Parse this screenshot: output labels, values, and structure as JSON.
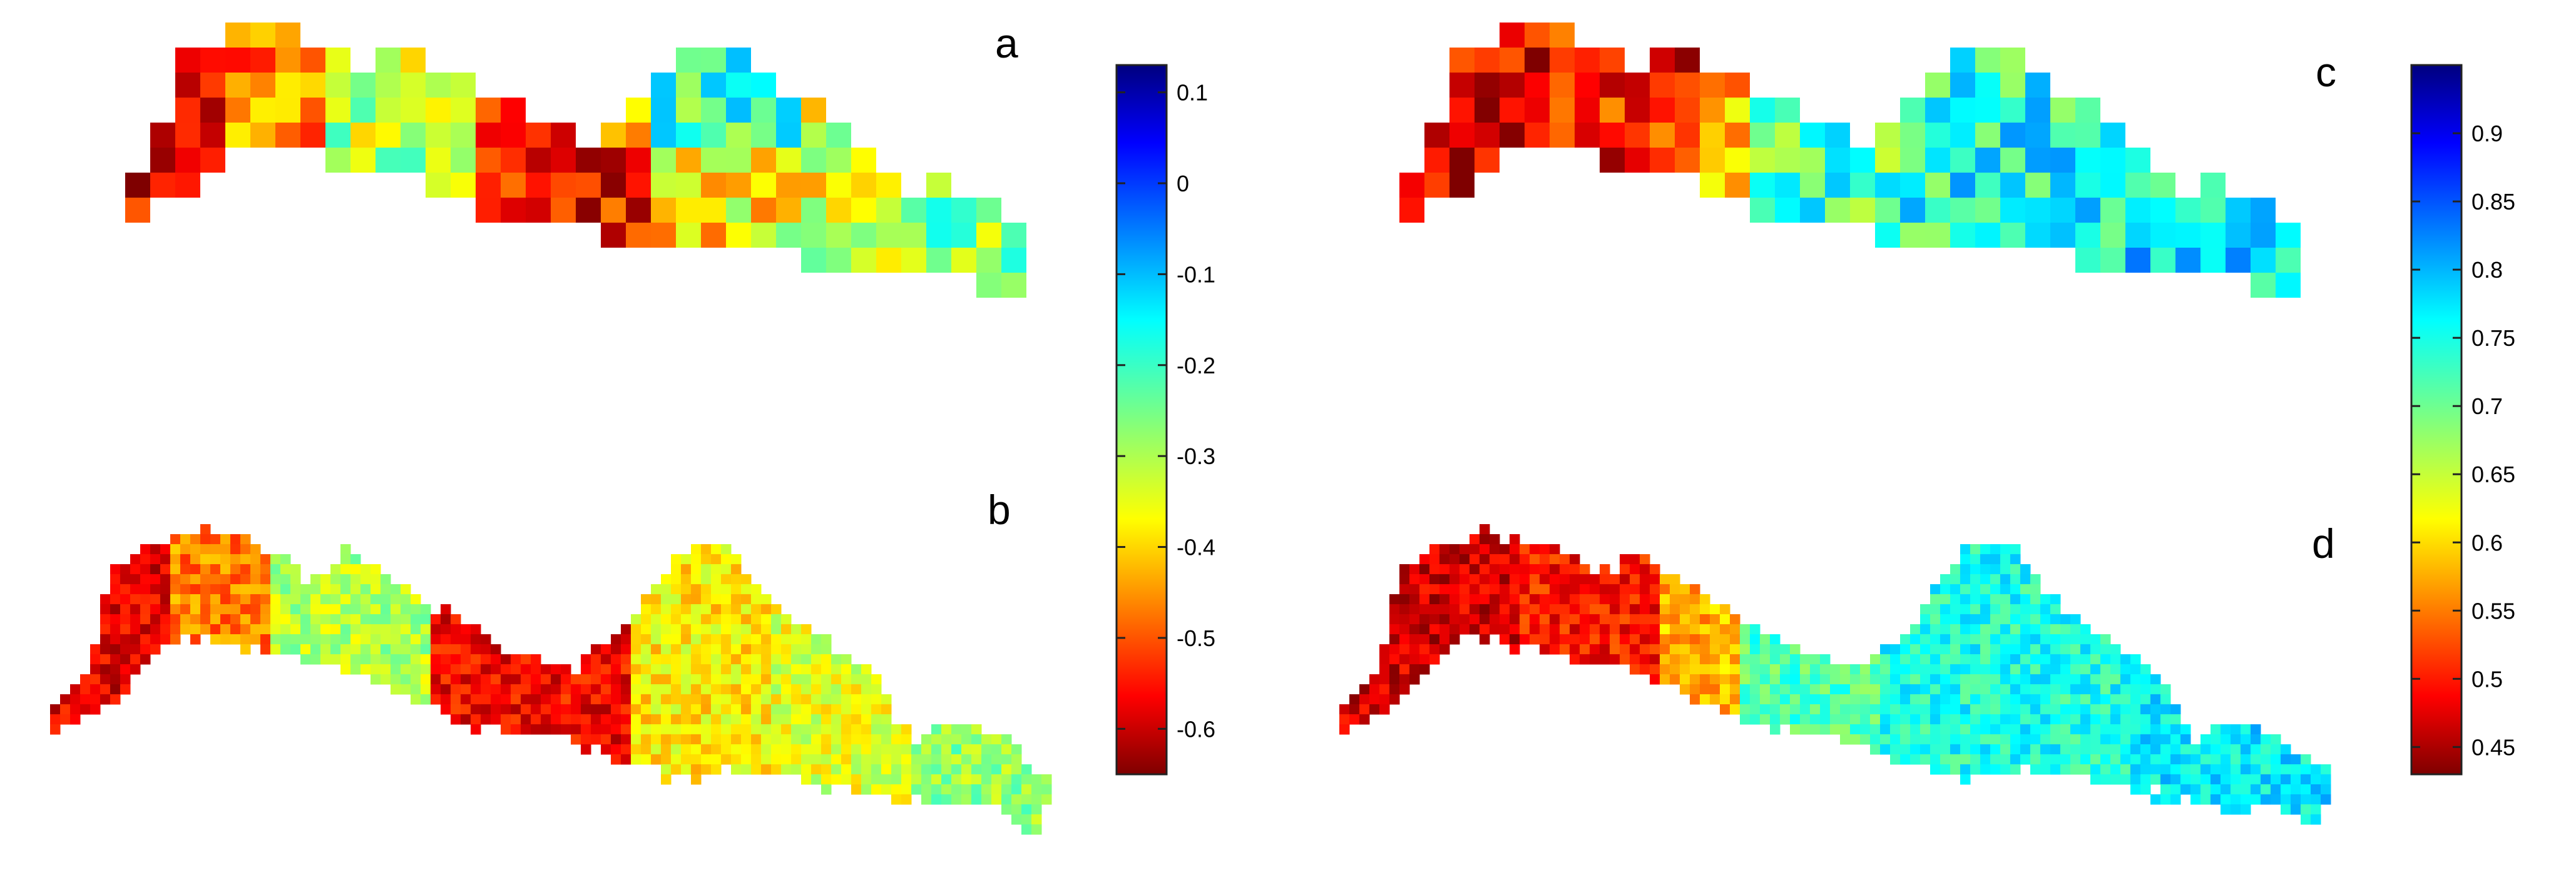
{
  "panels": [
    {
      "label": "a",
      "kind": "coarse-grid",
      "colorbar": "left"
    },
    {
      "label": "b",
      "kind": "fine-map",
      "colorbar": "left"
    },
    {
      "label": "c",
      "kind": "coarse-grid",
      "colorbar": "right"
    },
    {
      "label": "d",
      "kind": "fine-map",
      "colorbar": "right"
    }
  ],
  "chart_data": [
    {
      "type": "heatmap",
      "panels": [
        "a",
        "b"
      ],
      "colormap": "jet",
      "colorbar_range": [
        -0.65,
        0.13
      ],
      "colorbar_ticks": [
        "0.1",
        "0",
        "-0.1",
        "-0.2",
        "-0.3",
        "-0.4",
        "-0.5",
        "-0.6"
      ],
      "colorbar_tick_values": [
        0.1,
        0,
        -0.1,
        -0.2,
        -0.3,
        -0.4,
        -0.5,
        -0.6
      ],
      "grid": false
    },
    {
      "type": "heatmap",
      "panels": [
        "c",
        "d"
      ],
      "colormap": "jet",
      "colorbar_range": [
        0.43,
        0.95
      ],
      "colorbar_ticks": [
        "0.9",
        "0.85",
        "0.8",
        "0.75",
        "0.7",
        "0.65",
        "0.6",
        "0.55",
        "0.5",
        "0.45"
      ],
      "colorbar_tick_values": [
        0.9,
        0.85,
        0.8,
        0.75,
        0.7,
        0.65,
        0.6,
        0.55,
        0.5,
        0.45
      ],
      "grid": false
    }
  ],
  "colors": {
    "jet_stops": [
      "#7f0000",
      "#ff0000",
      "#ff7f00",
      "#ffff00",
      "#7fff7f",
      "#00ffff",
      "#007fff",
      "#0000ff",
      "#00007f"
    ]
  }
}
